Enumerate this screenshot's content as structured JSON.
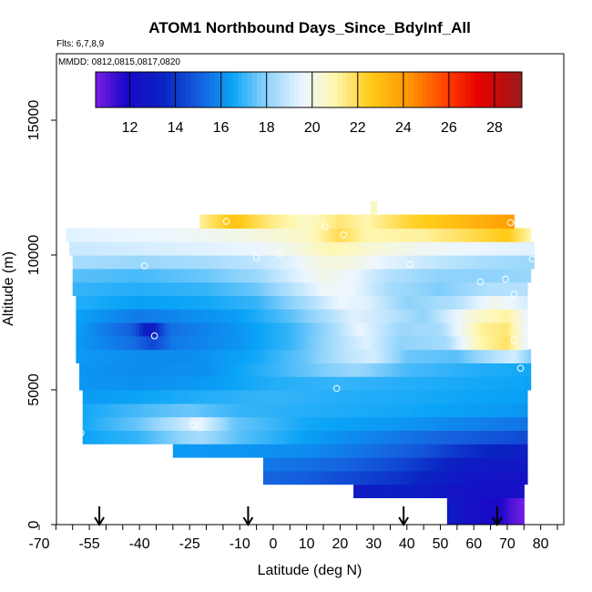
{
  "chart_data": {
    "type": "heatmap",
    "title": "ATOM1 Northbound Days_Since_BdyInf_All",
    "subtitle_flights": "Flts: 6,7,8,9",
    "subtitle_dates": "MMDD: 0812,0815,0817,0820",
    "xlabel": "Latitude (deg N)",
    "ylabel": "Altitude (m)",
    "xlim": [
      -70,
      85
    ],
    "ylim": [
      0,
      17500
    ],
    "x_ticks": [
      -70,
      -55,
      -40,
      -25,
      -10,
      0,
      10,
      20,
      30,
      40,
      50,
      60,
      70,
      80
    ],
    "x_tick_labels": [
      "-70",
      "-55",
      "-40",
      "-25",
      "-10",
      "0",
      "10",
      "20",
      "30",
      "40",
      "50",
      "60",
      "70",
      "80"
    ],
    "y_ticks": [
      0,
      5000,
      10000,
      15000
    ],
    "y_tick_labels": [
      "0",
      "5000",
      "10000",
      "15000"
    ],
    "colorbar": {
      "range": [
        10.5,
        29.2
      ],
      "ticks": [
        12,
        14,
        16,
        18,
        20,
        22,
        24,
        26,
        28
      ],
      "tick_labels": [
        "12",
        "14",
        "16",
        "18",
        "20",
        "22",
        "24",
        "26",
        "28"
      ],
      "stops": [
        {
          "value": 10.5,
          "color": "#7b1fe6"
        },
        {
          "value": 11.8,
          "color": "#1b08c8"
        },
        {
          "value": 13.5,
          "color": "#0a23c2"
        },
        {
          "value": 15.2,
          "color": "#1565e0"
        },
        {
          "value": 16.5,
          "color": "#0aa4f7"
        },
        {
          "value": 18.0,
          "color": "#8fd3fb"
        },
        {
          "value": 19.6,
          "color": "#ecf6ff"
        },
        {
          "value": 21.0,
          "color": "#fff7b0"
        },
        {
          "value": 22.5,
          "color": "#ffcc1a"
        },
        {
          "value": 24.3,
          "color": "#ff9400"
        },
        {
          "value": 26.0,
          "color": "#ff3a00"
        },
        {
          "value": 27.3,
          "color": "#e60000"
        },
        {
          "value": 29.2,
          "color": "#9a1b1b"
        }
      ]
    },
    "arrow_latitudes": [
      -52,
      -7.5,
      39,
      67
    ],
    "field_rows": [
      {
        "alt": [
          0,
          1000
        ],
        "lat_range": [
          52,
          75
        ],
        "values": [
          [
            52,
            13.0
          ],
          [
            60,
            12.3
          ],
          [
            68,
            11.8
          ],
          [
            72,
            11.0
          ],
          [
            75,
            10.6
          ]
        ]
      },
      {
        "alt": [
          1000,
          1500
        ],
        "lat_range": [
          24,
          75
        ],
        "values": [
          [
            24,
            13.0
          ],
          [
            35,
            13.3
          ],
          [
            45,
            13.1
          ],
          [
            55,
            12.5
          ],
          [
            65,
            12.4
          ],
          [
            75,
            12.3
          ]
        ]
      },
      {
        "alt": [
          1500,
          2000
        ],
        "lat_range": [
          -3,
          76
        ],
        "values": [
          [
            -3,
            15.2
          ],
          [
            10,
            15.0
          ],
          [
            20,
            14.6
          ],
          [
            30,
            14.2
          ],
          [
            40,
            13.8
          ],
          [
            50,
            13.2
          ],
          [
            60,
            12.6
          ],
          [
            76,
            12.5
          ]
        ]
      },
      {
        "alt": [
          2000,
          2500
        ],
        "lat_range": [
          -3,
          76
        ],
        "values": [
          [
            -3,
            15.6
          ],
          [
            10,
            15.4
          ],
          [
            20,
            15.2
          ],
          [
            30,
            14.8
          ],
          [
            40,
            14.3
          ],
          [
            50,
            13.6
          ],
          [
            60,
            13.0
          ],
          [
            76,
            12.8
          ]
        ]
      },
      {
        "alt": [
          2500,
          3000
        ],
        "lat_range": [
          -30,
          76
        ],
        "values": [
          [
            -30,
            16.3
          ],
          [
            -10,
            16.2
          ],
          [
            10,
            16.0
          ],
          [
            30,
            15.4
          ],
          [
            45,
            14.8
          ],
          [
            55,
            14.0
          ],
          [
            65,
            13.5
          ],
          [
            76,
            13.3
          ]
        ]
      },
      {
        "alt": [
          3000,
          3500
        ],
        "lat_range": [
          -57,
          76
        ],
        "values": [
          [
            -57,
            16.5
          ],
          [
            -40,
            17.0
          ],
          [
            -28,
            18.0
          ],
          [
            -22,
            18.4
          ],
          [
            -10,
            17.4
          ],
          [
            10,
            16.4
          ],
          [
            30,
            15.8
          ],
          [
            50,
            15.2
          ],
          [
            76,
            14.5
          ]
        ]
      },
      {
        "alt": [
          3500,
          4000
        ],
        "lat_range": [
          -57,
          76
        ],
        "values": [
          [
            -57,
            16.6
          ],
          [
            -40,
            17.6
          ],
          [
            -28,
            18.8
          ],
          [
            -22,
            19.6
          ],
          [
            -12,
            17.6
          ],
          [
            10,
            16.6
          ],
          [
            40,
            16.2
          ],
          [
            60,
            15.8
          ],
          [
            76,
            15.5
          ]
        ]
      },
      {
        "alt": [
          4000,
          4500
        ],
        "lat_range": [
          -57,
          76
        ],
        "values": [
          [
            -57,
            16.6
          ],
          [
            -40,
            17.2
          ],
          [
            -25,
            17.6
          ],
          [
            -10,
            17.0
          ],
          [
            10,
            16.8
          ],
          [
            40,
            16.6
          ],
          [
            76,
            16.2
          ]
        ]
      },
      {
        "alt": [
          4500,
          5000
        ],
        "lat_range": [
          -57,
          76
        ],
        "values": [
          [
            -57,
            16.3
          ],
          [
            -40,
            16.5
          ],
          [
            -20,
            16.8
          ],
          [
            0,
            17.0
          ],
          [
            20,
            16.8
          ],
          [
            40,
            16.7
          ],
          [
            76,
            16.4
          ]
        ]
      },
      {
        "alt": [
          5000,
          5500
        ],
        "lat_range": [
          -58,
          77
        ],
        "values": [
          [
            -58,
            16.2
          ],
          [
            -40,
            16.1
          ],
          [
            -20,
            16.3
          ],
          [
            0,
            16.8
          ],
          [
            20,
            17.0
          ],
          [
            40,
            16.8
          ],
          [
            77,
            16.5
          ]
        ]
      },
      {
        "alt": [
          5500,
          6000
        ],
        "lat_range": [
          -58,
          77
        ],
        "values": [
          [
            -58,
            16.2
          ],
          [
            -40,
            16.0
          ],
          [
            -20,
            16.1
          ],
          [
            0,
            17.0
          ],
          [
            15,
            17.8
          ],
          [
            25,
            18.2
          ],
          [
            40,
            17.2
          ],
          [
            60,
            16.8
          ],
          [
            77,
            16.6
          ]
        ]
      },
      {
        "alt": [
          6000,
          6500
        ],
        "lat_range": [
          -59,
          77
        ],
        "values": [
          [
            -59,
            16.3
          ],
          [
            -40,
            16.0
          ],
          [
            -25,
            16.0
          ],
          [
            -5,
            16.6
          ],
          [
            10,
            17.6
          ],
          [
            22,
            18.8
          ],
          [
            30,
            19.2
          ],
          [
            40,
            17.6
          ],
          [
            55,
            17.4
          ],
          [
            66,
            18.6
          ],
          [
            72,
            19.2
          ],
          [
            77,
            17.8
          ]
        ]
      },
      {
        "alt": [
          6500,
          7000
        ],
        "lat_range": [
          -59,
          76
        ],
        "values": [
          [
            -59,
            16.3
          ],
          [
            -42,
            15.4
          ],
          [
            -36,
            14.4
          ],
          [
            -30,
            15.6
          ],
          [
            -10,
            16.2
          ],
          [
            5,
            17.0
          ],
          [
            18,
            18.4
          ],
          [
            28,
            19.4
          ],
          [
            38,
            18.0
          ],
          [
            52,
            18.4
          ],
          [
            62,
            21.0
          ],
          [
            70,
            21.8
          ],
          [
            76,
            19.5
          ]
        ]
      },
      {
        "alt": [
          7000,
          7500
        ],
        "lat_range": [
          -59,
          76
        ],
        "values": [
          [
            -59,
            16.4
          ],
          [
            -42,
            15.0
          ],
          [
            -37,
            12.8
          ],
          [
            -31,
            15.4
          ],
          [
            -10,
            16.2
          ],
          [
            5,
            17.0
          ],
          [
            15,
            18.0
          ],
          [
            26,
            19.6
          ],
          [
            38,
            18.2
          ],
          [
            50,
            18.4
          ],
          [
            62,
            21.2
          ],
          [
            70,
            21.6
          ],
          [
            76,
            19.5
          ]
        ]
      },
      {
        "alt": [
          7500,
          8000
        ],
        "lat_range": [
          -59,
          76
        ],
        "values": [
          [
            -59,
            16.5
          ],
          [
            -40,
            15.6
          ],
          [
            -25,
            16.0
          ],
          [
            -10,
            16.4
          ],
          [
            5,
            17.4
          ],
          [
            15,
            18.4
          ],
          [
            24,
            19.4
          ],
          [
            32,
            19.0
          ],
          [
            45,
            18.0
          ],
          [
            60,
            20.4
          ],
          [
            70,
            21.2
          ],
          [
            76,
            19.6
          ]
        ]
      },
      {
        "alt": [
          8000,
          8500
        ],
        "lat_range": [
          -59,
          76
        ],
        "values": [
          [
            -59,
            16.8
          ],
          [
            -40,
            16.4
          ],
          [
            -20,
            16.6
          ],
          [
            -5,
            17.0
          ],
          [
            10,
            18.4
          ],
          [
            20,
            19.6
          ],
          [
            28,
            19.4
          ],
          [
            40,
            18.0
          ],
          [
            55,
            18.6
          ],
          [
            66,
            20.0
          ],
          [
            76,
            19.2
          ]
        ]
      },
      {
        "alt": [
          8500,
          9000
        ],
        "lat_range": [
          -60,
          76
        ],
        "values": [
          [
            -60,
            17.0
          ],
          [
            -40,
            16.8
          ],
          [
            -20,
            17.0
          ],
          [
            -5,
            17.6
          ],
          [
            5,
            18.6
          ],
          [
            16,
            19.8
          ],
          [
            24,
            19.6
          ],
          [
            35,
            18.4
          ],
          [
            50,
            17.8
          ],
          [
            65,
            18.6
          ],
          [
            76,
            18.6
          ]
        ]
      },
      {
        "alt": [
          9000,
          9500
        ],
        "lat_range": [
          -60,
          77
        ],
        "values": [
          [
            -60,
            17.4
          ],
          [
            -40,
            17.2
          ],
          [
            -20,
            17.6
          ],
          [
            -5,
            18.2
          ],
          [
            5,
            19.2
          ],
          [
            15,
            20.0
          ],
          [
            24,
            19.6
          ],
          [
            35,
            18.6
          ],
          [
            50,
            18.0
          ],
          [
            65,
            18.0
          ],
          [
            77,
            18.2
          ]
        ]
      },
      {
        "alt": [
          9500,
          10000
        ],
        "lat_range": [
          -60,
          78
        ],
        "values": [
          [
            -60,
            18.4
          ],
          [
            -40,
            18.2
          ],
          [
            -20,
            18.4
          ],
          [
            -5,
            18.8
          ],
          [
            5,
            19.4
          ],
          [
            15,
            20.2
          ],
          [
            22,
            20.2
          ],
          [
            35,
            19.4
          ],
          [
            50,
            18.8
          ],
          [
            65,
            18.4
          ],
          [
            78,
            18.2
          ]
        ]
      },
      {
        "alt": [
          10000,
          10500
        ],
        "lat_range": [
          -61,
          78
        ],
        "values": [
          [
            -61,
            19.0
          ],
          [
            -40,
            19.2
          ],
          [
            -20,
            19.4
          ],
          [
            -5,
            19.6
          ],
          [
            5,
            20.0
          ],
          [
            18,
            21.0
          ],
          [
            28,
            20.4
          ],
          [
            45,
            19.8
          ],
          [
            60,
            19.6
          ],
          [
            78,
            19.4
          ]
        ]
      },
      {
        "alt": [
          10500,
          11000
        ],
        "lat_range": [
          -62,
          77
        ],
        "values": [
          [
            -62,
            19.4
          ],
          [
            -40,
            19.6
          ],
          [
            -20,
            19.8
          ],
          [
            -5,
            20.2
          ],
          [
            10,
            20.6
          ],
          [
            20,
            22.0
          ],
          [
            28,
            21.0
          ],
          [
            45,
            21.2
          ],
          [
            60,
            22.0
          ],
          [
            70,
            22.6
          ],
          [
            77,
            21.0
          ]
        ]
      },
      {
        "alt": [
          11000,
          11500
        ],
        "lat_range": [
          -22,
          72
        ],
        "values": [
          [
            -22,
            21.2
          ],
          [
            -12,
            22.8
          ],
          [
            0,
            21.4
          ],
          [
            10,
            20.6
          ],
          [
            20,
            21.6
          ],
          [
            28,
            21.0
          ],
          [
            40,
            22.2
          ],
          [
            55,
            23.0
          ],
          [
            65,
            23.6
          ],
          [
            72,
            24.0
          ]
        ]
      },
      {
        "alt": [
          11500,
          12000
        ],
        "lat_range": [
          29,
          31
        ],
        "values": [
          [
            29,
            20.6
          ],
          [
            31,
            20.6
          ]
        ]
      }
    ],
    "sample_points": [
      [
        -57.5,
        3400
      ],
      [
        -24,
        3700
      ],
      [
        -35.5,
        7000
      ],
      [
        -38.5,
        9600
      ],
      [
        -14,
        11250
      ],
      [
        2,
        10050
      ],
      [
        -5,
        9900
      ],
      [
        19,
        5050
      ],
      [
        21,
        10750
      ],
      [
        15.5,
        11050
      ],
      [
        41,
        9650
      ],
      [
        62,
        9000
      ],
      [
        69.5,
        9100
      ],
      [
        72,
        8550
      ],
      [
        72,
        6850
      ],
      [
        74,
        5800
      ],
      [
        77.5,
        9850
      ],
      [
        71,
        11200
      ]
    ]
  }
}
